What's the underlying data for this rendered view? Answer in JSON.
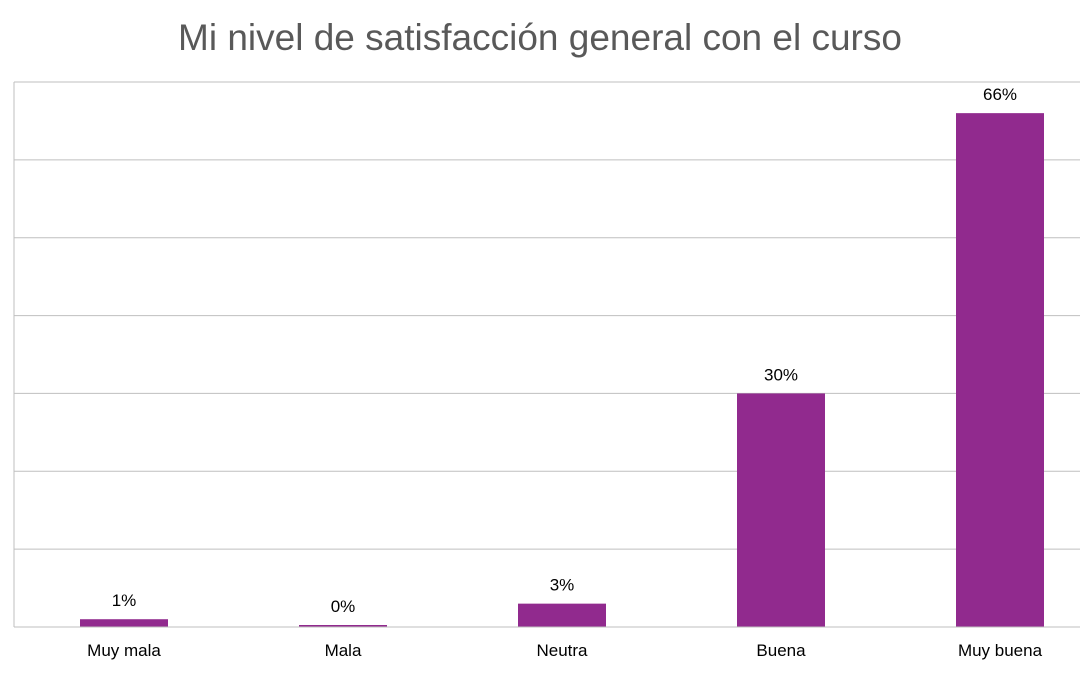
{
  "chart_data": {
    "type": "bar",
    "title": "Mi nivel de satisfacción general con el curso",
    "categories": [
      "Muy mala",
      "Mala",
      "Neutra",
      "Buena",
      "Muy buena"
    ],
    "values": [
      1,
      0,
      3,
      30,
      66
    ],
    "value_labels": [
      "1%",
      "0%",
      "3%",
      "30%",
      "66%"
    ],
    "ylim": [
      0,
      70
    ],
    "grid": true,
    "legend": "none",
    "bar_color": "#912a8e",
    "grid_color": "#bfbfbf"
  }
}
